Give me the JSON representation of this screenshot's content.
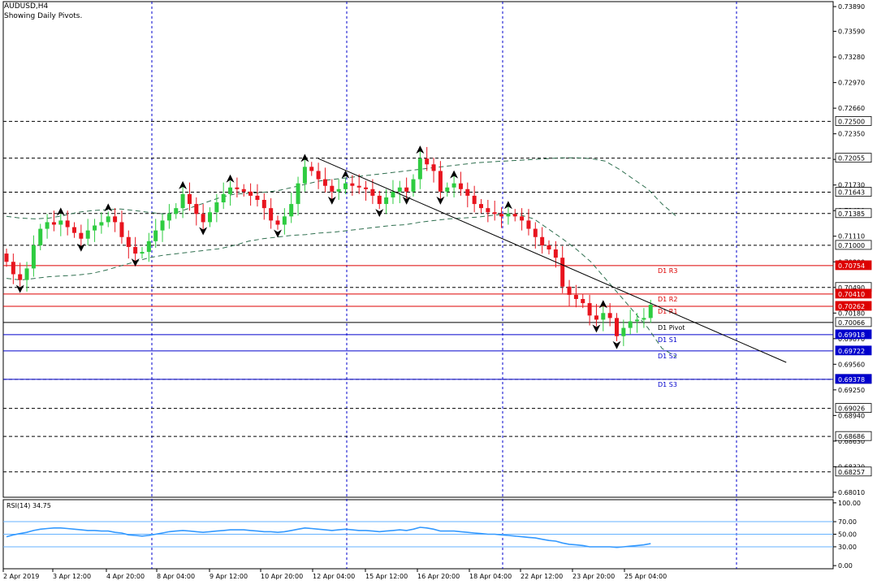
{
  "header": {
    "symbol_line": "AUDUSD,H4",
    "subtitle": "Showing Daily Pivots."
  },
  "colors": {
    "bull": "#2ecc40",
    "bear": "#e8141e",
    "grid": "#000000",
    "vgrid": "#0000cc",
    "pivot_red": "#dd0000",
    "pivot_blue": "#0000cc",
    "rsi_line": "#3399ff",
    "rsi_level": "#66b2ff",
    "bands": "#2f6f4f",
    "trend": "#000000"
  },
  "chart_data": [
    {
      "type": "candlestick",
      "symbol": "AUDUSD",
      "timeframe": "H4",
      "ylim": [
        0.6795,
        0.7395
      ],
      "y_ticks": [
        "0.73890",
        "0.73590",
        "0.73280",
        "0.72970",
        "0.72660",
        "0.72350",
        "0.72040",
        "0.71730",
        "0.71420",
        "0.71110",
        "0.70800",
        "0.70490",
        "0.70180",
        "0.69870",
        "0.69560",
        "0.69250",
        "0.68940",
        "0.68630",
        "0.68320",
        "0.68010"
      ],
      "x_ticks": [
        "2 Apr 2019",
        "3 Apr 12:00",
        "4 Apr 20:00",
        "8 Apr 04:00",
        "9 Apr 12:00",
        "10 Apr 20:00",
        "12 Apr 04:00",
        "15 Apr 12:00",
        "16 Apr 20:00",
        "18 Apr 04:00",
        "22 Apr 12:00",
        "23 Apr 20:00",
        "25 Apr 04:00"
      ],
      "dashed_levels": [
        {
          "label": "0.72500",
          "value": 0.725
        },
        {
          "label": "0.72055",
          "value": 0.72055
        },
        {
          "label": "0.71643",
          "value": 0.71643
        },
        {
          "label": "0.71385",
          "value": 0.71385
        },
        {
          "label": "0.71000",
          "value": 0.71
        },
        {
          "label": "0.70490",
          "value": 0.7049
        },
        {
          "label": "0.69378",
          "value": 0.69378
        },
        {
          "label": "0.69026",
          "value": 0.69026
        },
        {
          "label": "0.68686",
          "value": 0.68686
        },
        {
          "label": "0.68257",
          "value": 0.68257
        }
      ],
      "pivots": [
        {
          "name": "D1 R3",
          "value": 0.70754,
          "price_label": "0.70754",
          "color": "red"
        },
        {
          "name": "D1 R2",
          "value": 0.7041,
          "price_label": "0.70410",
          "color": "red"
        },
        {
          "name": "D1 R1",
          "value": 0.70262,
          "price_label": "0.70262",
          "color": "red"
        },
        {
          "name": "D1 Pivot",
          "value": 0.70066,
          "price_label": "0.70066",
          "color": "black"
        },
        {
          "name": "D1 S1",
          "value": 0.69918,
          "price_label": "0.69918",
          "color": "blue"
        },
        {
          "name": "D1 S2",
          "value": 0.69722,
          "price_label": "0.69722",
          "color": "blue"
        },
        {
          "name": "D1 S3",
          "value": 0.69378,
          "price_label": "0.69378",
          "color": "blue"
        }
      ],
      "closes": [
        0.708,
        0.7065,
        0.7058,
        0.7072,
        0.71,
        0.712,
        0.7128,
        0.7125,
        0.713,
        0.7122,
        0.7115,
        0.7108,
        0.7118,
        0.7124,
        0.7128,
        0.7135,
        0.7128,
        0.711,
        0.7098,
        0.709,
        0.7092,
        0.7105,
        0.7118,
        0.713,
        0.7138,
        0.7145,
        0.7162,
        0.715,
        0.7138,
        0.7128,
        0.714,
        0.7152,
        0.7162,
        0.717,
        0.7168,
        0.7165,
        0.716,
        0.7155,
        0.7145,
        0.713,
        0.7125,
        0.7135,
        0.715,
        0.7175,
        0.7195,
        0.719,
        0.718,
        0.7172,
        0.7165,
        0.7168,
        0.7175,
        0.7172,
        0.717,
        0.7168,
        0.716,
        0.715,
        0.7158,
        0.7165,
        0.717,
        0.7165,
        0.718,
        0.7205,
        0.7198,
        0.719,
        0.7165,
        0.717,
        0.7175,
        0.7168,
        0.716,
        0.715,
        0.7145,
        0.714,
        0.7138,
        0.7135,
        0.7138,
        0.7135,
        0.713,
        0.712,
        0.711,
        0.71,
        0.7095,
        0.7085,
        0.705,
        0.704,
        0.7035,
        0.703,
        0.7015,
        0.701,
        0.7018,
        0.7012,
        0.699,
        0.7,
        0.7008,
        0.701,
        0.7012,
        0.7028
      ],
      "band_upper": [
        0.7135,
        0.7133,
        0.7132,
        0.7133,
        0.7136,
        0.714,
        0.7142,
        0.7143,
        0.7144,
        0.7142,
        0.714,
        0.7138,
        0.714,
        0.7146,
        0.7152,
        0.7158,
        0.7162,
        0.7163,
        0.7164,
        0.7166,
        0.717,
        0.7174,
        0.7178,
        0.718,
        0.7182,
        0.7184,
        0.7186,
        0.7188,
        0.719,
        0.7192,
        0.7194,
        0.7196,
        0.7198,
        0.72,
        0.7201,
        0.7202,
        0.7203,
        0.7204,
        0.7205,
        0.7206,
        0.7206,
        0.7205,
        0.7202,
        0.7192,
        0.718,
        0.7168,
        0.715,
        0.7135
      ],
      "band_lower": [
        0.706,
        0.7058,
        0.706,
        0.7062,
        0.7063,
        0.7064,
        0.7066,
        0.707,
        0.7075,
        0.708,
        0.7085,
        0.7088,
        0.709,
        0.7092,
        0.7094,
        0.7096,
        0.71,
        0.7105,
        0.7108,
        0.711,
        0.7112,
        0.7113,
        0.7115,
        0.7116,
        0.7118,
        0.712,
        0.7122,
        0.7124,
        0.7125,
        0.7128,
        0.713,
        0.7132,
        0.7133,
        0.7134,
        0.7136,
        0.7138,
        0.7137,
        0.7132,
        0.712,
        0.7108,
        0.7095,
        0.708,
        0.706,
        0.704,
        0.702,
        0.7,
        0.6975,
        0.6965
      ],
      "trendline": [
        {
          "i": 46,
          "value": 0.7205
        },
        {
          "i": 95.5,
          "value": 0.7028
        }
      ]
    },
    {
      "type": "line",
      "name": "RSI(14)",
      "label": "RSI(14) 34.75",
      "current": 34.75,
      "ylim": [
        -5,
        105
      ],
      "y_ticks": [
        "100.00",
        "70.00",
        "50.00",
        "30.00",
        "0.00"
      ],
      "levels": [
        70,
        50,
        30
      ],
      "values": [
        46,
        49,
        51,
        53,
        56,
        58,
        59,
        60,
        60,
        59,
        58,
        57,
        56,
        56,
        55,
        55,
        53,
        52,
        49,
        48,
        47,
        48,
        50,
        52,
        54,
        55,
        56,
        55,
        54,
        53,
        54,
        55,
        56,
        57,
        57,
        57,
        56,
        55,
        54,
        54,
        53,
        54,
        56,
        58,
        60,
        59,
        58,
        57,
        56,
        57,
        58,
        57,
        56,
        56,
        55,
        54,
        55,
        56,
        57,
        56,
        58,
        61,
        60,
        58,
        55,
        55,
        55,
        54,
        53,
        52,
        51,
        50,
        50,
        49,
        48,
        47,
        46,
        45,
        44,
        42,
        40,
        39,
        36,
        34,
        33,
        32,
        30,
        30,
        30,
        30,
        29,
        30,
        31,
        32,
        33,
        35
      ]
    }
  ]
}
